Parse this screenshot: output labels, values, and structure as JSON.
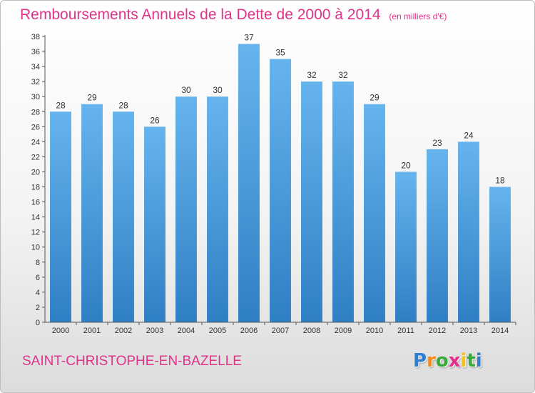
{
  "chart_data": {
    "type": "bar",
    "title": "Remboursements Annuels de la Dette de 2000 à 2014",
    "subtitle": "(en milliers d'€)",
    "categories": [
      "2000",
      "2001",
      "2002",
      "2003",
      "2004",
      "2005",
      "2006",
      "2007",
      "2008",
      "2009",
      "2010",
      "2011",
      "2012",
      "2013",
      "2014"
    ],
    "values": [
      28,
      29,
      28,
      26,
      30,
      30,
      37,
      35,
      32,
      32,
      29,
      20,
      23,
      24,
      18
    ],
    "xlabel": "",
    "ylabel": "",
    "ylim": [
      0,
      38
    ],
    "yticks": [
      0,
      2,
      4,
      6,
      8,
      10,
      12,
      14,
      16,
      18,
      20,
      22,
      24,
      26,
      28,
      30,
      32,
      34,
      36,
      38
    ],
    "grid": false,
    "data_labels": true,
    "bar_color": "#4a9fe0"
  },
  "footer": {
    "town": "SAINT-CHRISTOPHE-EN-BAZELLE"
  },
  "logo": {
    "letters": [
      "P",
      "r",
      "o",
      "x",
      "i",
      "t",
      "i"
    ],
    "colors": [
      "#2e7fd1",
      "#f08a1c",
      "#3aa83a",
      "#e52e8a",
      "#f2c21b",
      "#3aa83a",
      "#2e7fd1"
    ]
  },
  "colors": {
    "title": "#e0338a",
    "bar_light": "#66b4ee",
    "bar_dark": "#2f7fc4"
  }
}
